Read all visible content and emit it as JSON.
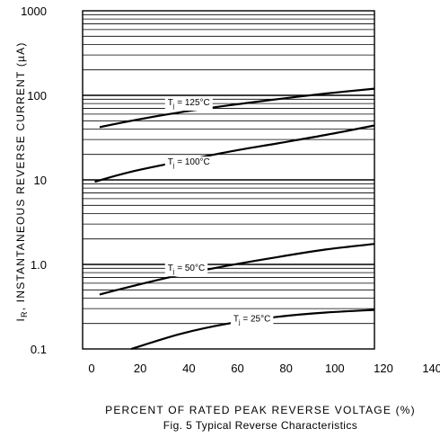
{
  "chart_data": {
    "type": "line",
    "title": "",
    "xlabel": "PERCENT OF RATED PEAK REVERSE VOLTAGE (%)",
    "ylabel": "INSTANTANEOUS REVERSE CURRENT (µA)",
    "ylabel_symbol": "I",
    "ylabel_subscript": "R",
    "caption": "Fig. 5  Typical Reverse Characteristics",
    "xlim": [
      0,
      140
    ],
    "ylim": [
      0.1,
      1000
    ],
    "yscale": "log",
    "xticks": [
      "0",
      "20",
      "40",
      "60",
      "80",
      "100",
      "120",
      "140"
    ],
    "yticks": [
      "0.1",
      "1.0",
      "10",
      "100",
      "1000"
    ],
    "grid": true,
    "series": [
      {
        "name": "Tj = 125°C",
        "label_prefix": "T",
        "label_sub": "j",
        "label_suffix": " = 125°C",
        "x": [
          7,
          20,
          40,
          60,
          80,
          100,
          120
        ],
        "y": [
          42,
          50,
          63,
          76,
          90,
          105,
          120
        ]
      },
      {
        "name": "Tj = 100°C",
        "label_prefix": "T",
        "label_sub": "j",
        "label_suffix": " = 100°C",
        "x": [
          5,
          20,
          40,
          60,
          80,
          100,
          120
        ],
        "y": [
          9.5,
          12.5,
          16.5,
          21.5,
          27,
          34,
          44
        ]
      },
      {
        "name": "Tj = 50°C",
        "label_prefix": "T",
        "label_sub": "j",
        "label_suffix": " = 50°C",
        "x": [
          7,
          20,
          40,
          60,
          80,
          100,
          120
        ],
        "y": [
          0.44,
          0.55,
          0.75,
          0.97,
          1.22,
          1.5,
          1.75
        ]
      },
      {
        "name": "Tj = 25°C",
        "label_prefix": "T",
        "label_sub": "j",
        "label_suffix": " = 25°C",
        "x": [
          20,
          40,
          60,
          80,
          100,
          120
        ],
        "y": [
          0.1,
          0.15,
          0.2,
          0.24,
          0.27,
          0.29
        ]
      }
    ]
  }
}
